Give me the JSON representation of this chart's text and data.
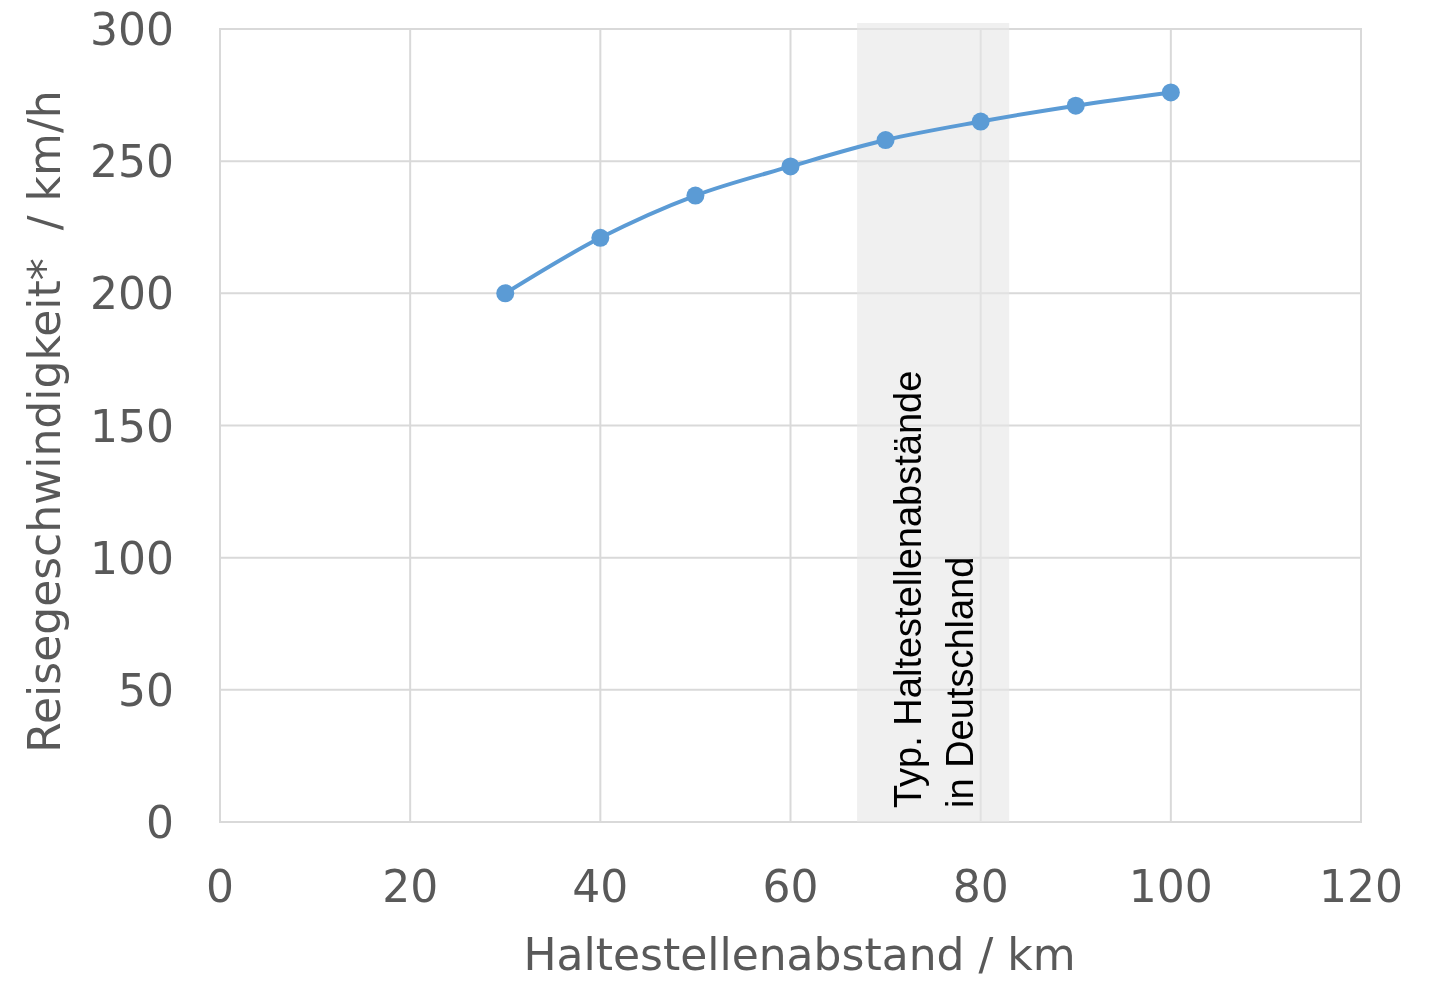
{
  "chart_data": {
    "type": "line",
    "xlabel": "Haltestellenabstand / km",
    "ylabel": "Reisegeschwindigkeit*  / km/h",
    "x": [
      30,
      40,
      50,
      60,
      70,
      80,
      90,
      100
    ],
    "series": [
      {
        "color": "#5b9bd5",
        "values": [
          200,
          221,
          237,
          248,
          258,
          265,
          271,
          276
        ]
      }
    ],
    "xlim": [
      0,
      120
    ],
    "xticks": [
      0,
      20,
      40,
      60,
      80,
      100,
      120
    ],
    "ylim": [
      0,
      300
    ],
    "yticks": [
      0,
      50,
      100,
      150,
      200,
      250,
      300
    ],
    "grid": true,
    "marker": "circle",
    "line_style": "solid",
    "bands": [
      {
        "axis": "x",
        "from": 67,
        "to": 83,
        "label": "Typ. Haltestellenabstände\nin Deutschland",
        "color": "#e6e6e6"
      }
    ]
  }
}
